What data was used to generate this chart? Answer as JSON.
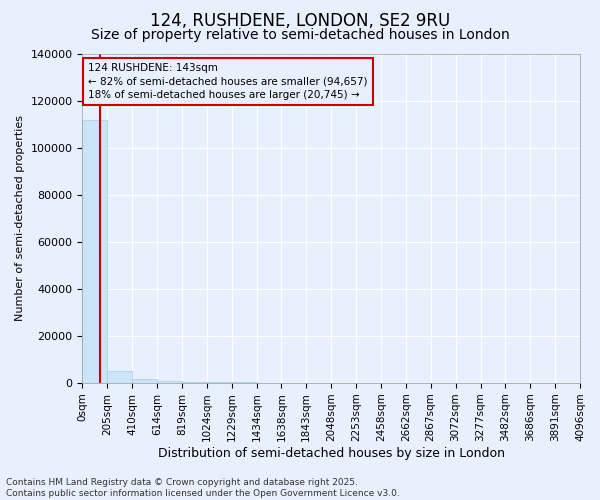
{
  "title": "124, RUSHDENE, LONDON, SE2 9RU",
  "subtitle": "Size of property relative to semi-detached houses in London",
  "xlabel": "Distribution of semi-detached houses by size in London",
  "ylabel": "Number of semi-detached properties",
  "property_size": 143,
  "annotation_text": "124 RUSHDENE: 143sqm\n← 82% of semi-detached houses are smaller (94,657)\n18% of semi-detached houses are larger (20,745) →",
  "bar_color": "#cce4f7",
  "bar_edge_color": "#aacce8",
  "line_color": "#cc0000",
  "annotation_box_color": "#cc0000",
  "ylim": [
    0,
    140000
  ],
  "yticks": [
    0,
    20000,
    40000,
    60000,
    80000,
    100000,
    120000,
    140000
  ],
  "bin_edges": [
    0,
    205,
    410,
    614,
    819,
    1024,
    1229,
    1434,
    1638,
    1843,
    2048,
    2253,
    2458,
    2662,
    2867,
    3072,
    3277,
    3482,
    3686,
    3891,
    4096
  ],
  "bin_counts": [
    112000,
    5000,
    1500,
    800,
    500,
    350,
    250,
    180,
    140,
    110,
    90,
    70,
    55,
    45,
    38,
    32,
    26,
    22,
    18,
    15
  ],
  "copyright_text": "Contains HM Land Registry data © Crown copyright and database right 2025.\nContains public sector information licensed under the Open Government Licence v3.0.",
  "background_color": "#e8f0fe",
  "grid_color": "#ffffff",
  "tick_label_fontsize": 7.5,
  "title_fontsize": 12,
  "subtitle_fontsize": 10,
  "ylabel_fontsize": 8,
  "xlabel_fontsize": 9
}
